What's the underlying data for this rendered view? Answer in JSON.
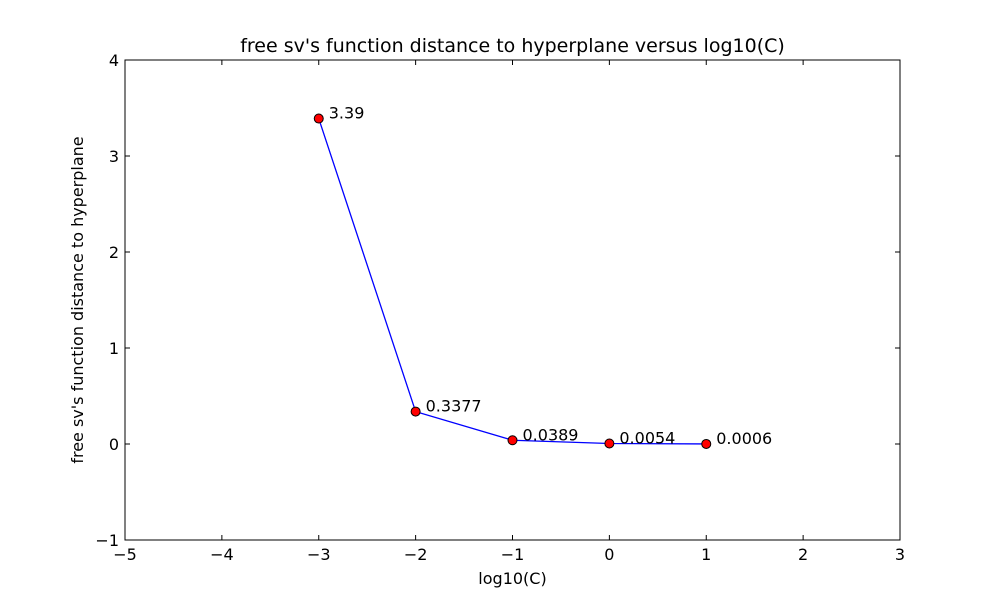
{
  "chart_data": {
    "type": "line",
    "title": "free sv's function distance to hyperplane versus log10(C)",
    "xlabel": "log10(C)",
    "ylabel": "free sv's function distance to hyperplane",
    "xlim": [
      -5,
      3
    ],
    "ylim": [
      -1,
      4
    ],
    "xticks": [
      -5,
      -4,
      -3,
      -2,
      -1,
      0,
      1,
      2,
      3
    ],
    "yticks": [
      -1,
      0,
      1,
      2,
      3,
      4
    ],
    "xtick_labels": [
      "−5",
      "−4",
      "−3",
      "−2",
      "−1",
      "0",
      "1",
      "2",
      "3"
    ],
    "ytick_labels": [
      "−1",
      "0",
      "1",
      "2",
      "3",
      "4"
    ],
    "grid": false,
    "legend": "none",
    "series": [
      {
        "x": [
          -3,
          -2,
          -1,
          0,
          1
        ],
        "y": [
          3.39,
          0.3377,
          0.0389,
          0.0054,
          0.0006
        ],
        "labels": [
          "3.39",
          "0.3377",
          "0.0389",
          "0.0054",
          "0.0006"
        ],
        "line_color": "#0000ff",
        "marker_color": "#ff0000"
      }
    ]
  }
}
